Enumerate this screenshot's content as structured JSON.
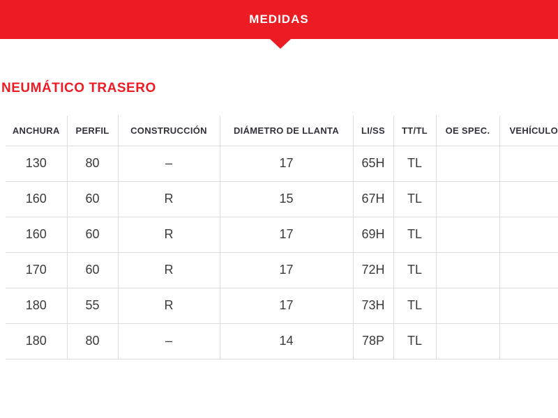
{
  "banner": {
    "title": "MEDIDAS"
  },
  "section": {
    "title": "NEUMÁTICO TRASERO"
  },
  "table": {
    "columns": [
      "ANCHURA",
      "PERFIL",
      "CONSTRUCCIÓN",
      "DIÁMETRO DE LLANTA",
      "LI/SS",
      "TT/TL",
      "OE SPEC.",
      "VEHÍCULO"
    ],
    "rows": [
      [
        "130",
        "80",
        "–",
        "17",
        "65H",
        "TL",
        "",
        ""
      ],
      [
        "160",
        "60",
        "R",
        "15",
        "67H",
        "TL",
        "",
        ""
      ],
      [
        "160",
        "60",
        "R",
        "17",
        "69H",
        "TL",
        "",
        ""
      ],
      [
        "170",
        "60",
        "R",
        "17",
        "72H",
        "TL",
        "",
        ""
      ],
      [
        "180",
        "55",
        "R",
        "17",
        "73H",
        "TL",
        "",
        ""
      ],
      [
        "180",
        "80",
        "–",
        "14",
        "78P",
        "TL",
        "",
        ""
      ]
    ]
  },
  "colors": {
    "accent_red": "#EC1C24",
    "header_text": "#32323A",
    "body_text": "#3A3A3A",
    "grid_line": "#DCDCDC"
  }
}
